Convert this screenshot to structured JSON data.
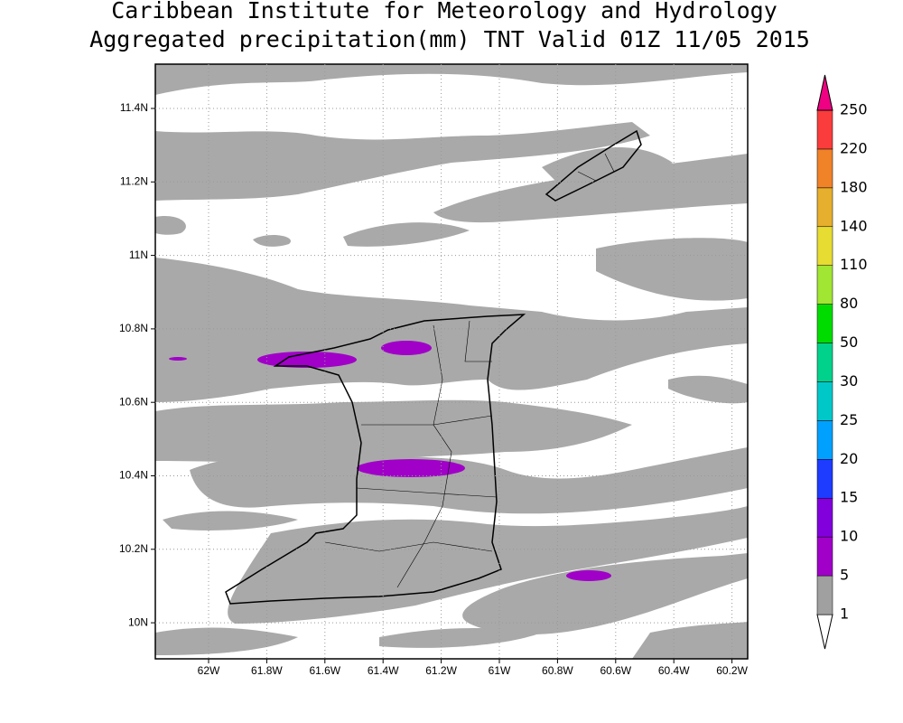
{
  "title": "Caribbean Institute for Meteorology and Hydrology",
  "subtitle": "Aggregated precipitation(mm) TNT Valid 01Z 11/05 2015",
  "map": {
    "xticks": [
      "62W",
      "61.8W",
      "61.6W",
      "61.4W",
      "61.2W",
      "61W",
      "60.8W",
      "60.6W",
      "60.4W",
      "60.2W"
    ],
    "yticks": [
      "11.4N",
      "11.2N",
      "11N",
      "10.8N",
      "10.6N",
      "10.4N",
      "10.2N",
      "10N"
    ]
  },
  "colorbar": {
    "labels": [
      1,
      5,
      10,
      15,
      20,
      25,
      30,
      50,
      80,
      110,
      140,
      180,
      220,
      250
    ],
    "colors": [
      "#ffffff",
      "#a0a0a0",
      "#a000c8",
      "#8200dc",
      "#1e3cff",
      "#00a0ff",
      "#00c8c8",
      "#00d28c",
      "#00dc00",
      "#a0e632",
      "#e6dc32",
      "#e6af2d",
      "#f08228",
      "#fa3c3c",
      "#f00082"
    ]
  }
}
